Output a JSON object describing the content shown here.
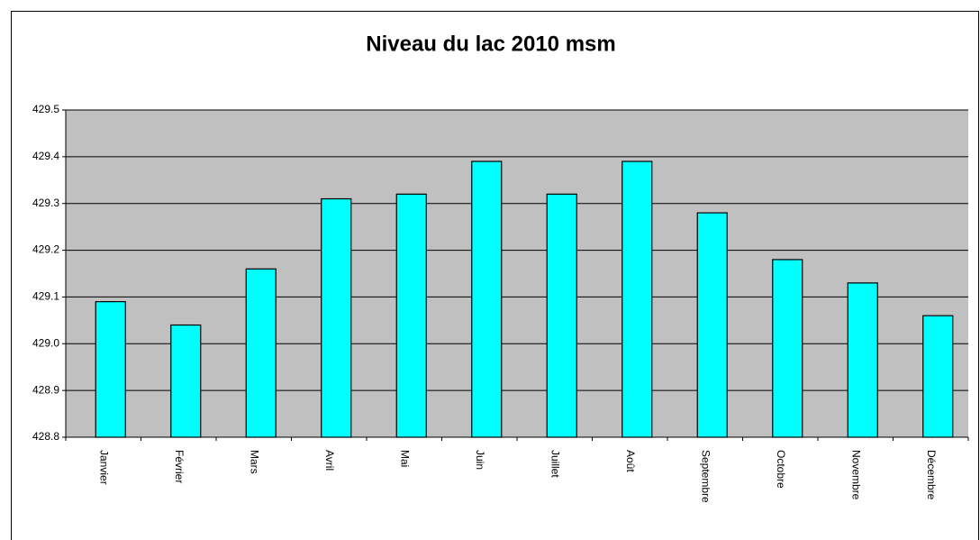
{
  "chart_data": {
    "type": "bar",
    "title": "Niveau du lac 2010 msm",
    "categories": [
      "Janvier",
      "Février",
      "Mars",
      "Avril",
      "Mai",
      "Juin",
      "Juillet",
      "Août",
      "Septembre",
      "Octobre",
      "Novembre",
      "Décembre"
    ],
    "values": [
      429.09,
      429.04,
      429.16,
      429.31,
      429.32,
      429.39,
      429.32,
      429.39,
      429.28,
      429.18,
      429.13,
      429.06
    ],
    "color": "#00ffff",
    "ylim": [
      428.8,
      429.5
    ],
    "yticks": [
      428.8,
      428.9,
      {
        "value": 429,
        "label": "429.0"
      },
      429.1,
      429.2,
      429.3,
      429.4,
      429.5
    ],
    "grid": true
  }
}
